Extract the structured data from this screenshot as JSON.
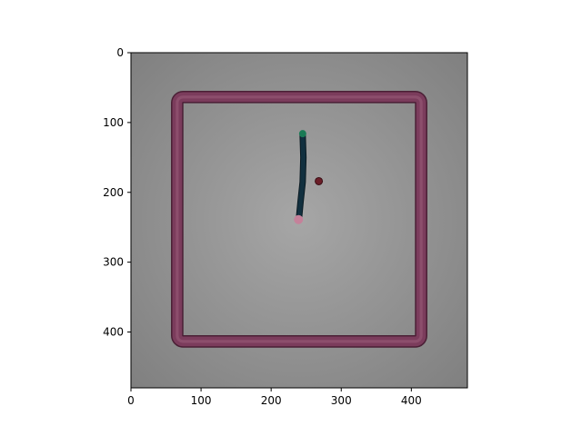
{
  "chart_data": {
    "type": "image",
    "xlim": [
      0,
      480
    ],
    "ylim": [
      480,
      0
    ],
    "x_ticks": [
      0,
      100,
      200,
      300,
      400
    ],
    "y_ticks": [
      0,
      100,
      200,
      300,
      400
    ],
    "x_tick_labels": [
      "0",
      "100",
      "200",
      "300",
      "400"
    ],
    "y_tick_labels": [
      "0",
      "100",
      "200",
      "300",
      "400"
    ],
    "arena": {
      "outer": [
        58,
        55,
        422,
        422
      ],
      "inner": [
        74,
        72,
        406,
        405
      ],
      "color": "#7b3c5c"
    },
    "worm": {
      "path": [
        [
          245,
          118
        ],
        [
          246,
          150
        ],
        [
          245,
          185
        ],
        [
          242,
          213
        ],
        [
          240,
          234
        ]
      ],
      "color": "#12303f",
      "head": {
        "x": 245,
        "y": 116,
        "color": "#1a7a55"
      },
      "tail": {
        "x": 239,
        "y": 239,
        "color": "#c5819a"
      }
    },
    "food": {
      "x": 268,
      "y": 184,
      "color": "#6b1e28"
    },
    "colors": {
      "background_center": "#a6a6a6",
      "background_edge": "#808080"
    }
  }
}
